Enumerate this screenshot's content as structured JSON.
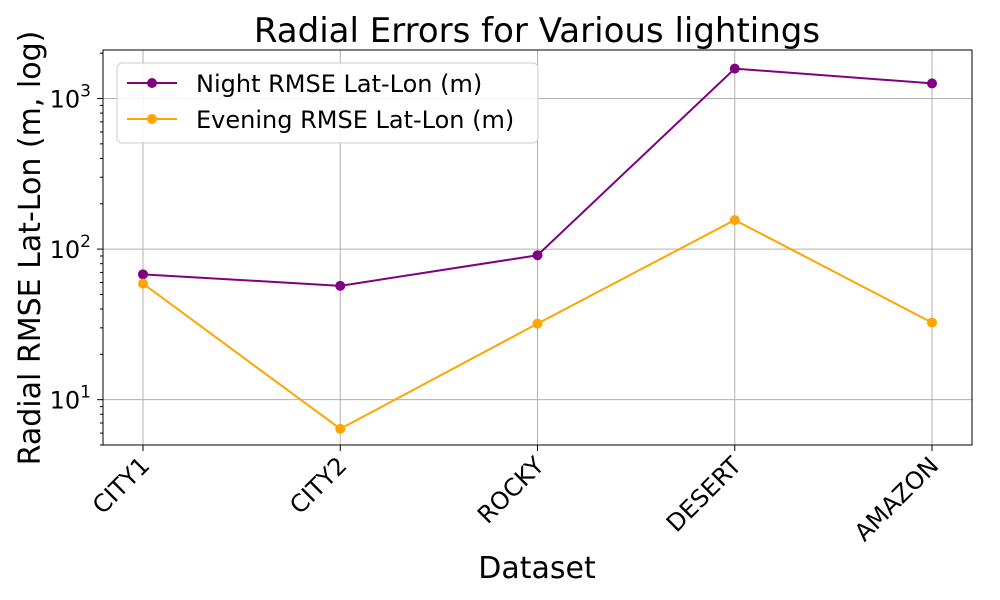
{
  "chart_data": {
    "type": "line",
    "title": "Radial Errors for Various lightings",
    "xlabel": "Dataset",
    "ylabel": "Radial RMSE Lat-Lon (m, log)",
    "yscale": "log",
    "ylim": [
      5,
      2100
    ],
    "yticks": [
      {
        "value": 10,
        "base": "10",
        "exp": "1"
      },
      {
        "value": 100,
        "base": "10",
        "exp": "2"
      },
      {
        "value": 1000,
        "base": "10",
        "exp": "3"
      }
    ],
    "categories": [
      "CITY1",
      "CITY2",
      "ROCKY",
      "DESERT",
      "AMAZON"
    ],
    "series": [
      {
        "name": "Night RMSE Lat-Lon (m)",
        "color": "#800080",
        "values": [
          68,
          57,
          91,
          1580,
          1260
        ]
      },
      {
        "name": "Evening RMSE Lat-Lon (m)",
        "color": "#ffa500",
        "values": [
          59,
          6.4,
          32,
          156,
          32.5
        ]
      }
    ],
    "grid": true,
    "legend": "top-left"
  }
}
